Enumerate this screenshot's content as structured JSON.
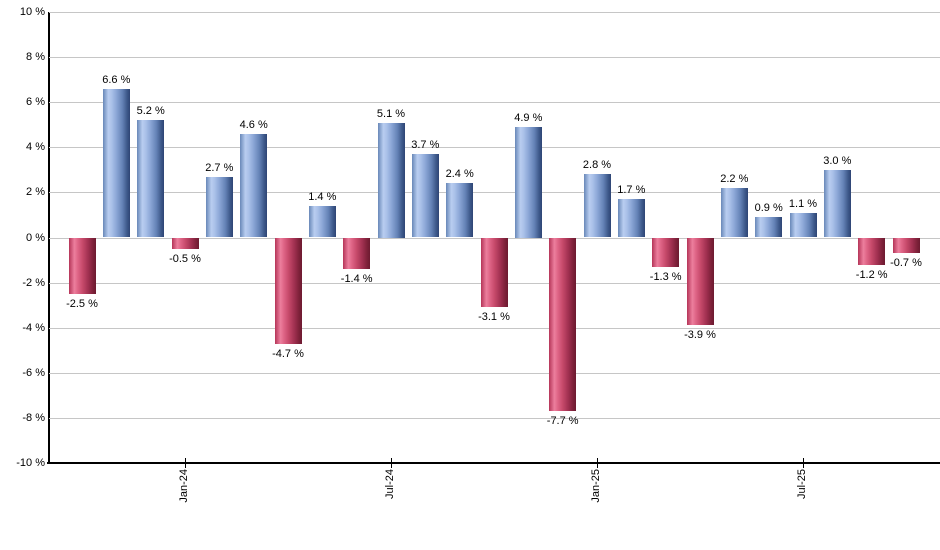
{
  "chart_data": {
    "type": "bar",
    "title": "",
    "xlabel": "",
    "ylabel": "",
    "values": [
      -2.5,
      6.6,
      5.2,
      -0.5,
      2.7,
      4.6,
      -4.7,
      1.4,
      -1.4,
      5.1,
      3.7,
      2.4,
      -3.1,
      4.9,
      -7.7,
      2.8,
      1.7,
      -1.3,
      -3.9,
      2.2,
      0.9,
      1.1,
      3.0,
      -1.2,
      -0.7
    ],
    "bar_value_labels": [
      "-2.5 %",
      "6.6 %",
      "5.2 %",
      "-0.5 %",
      "2.7 %",
      "4.6 %",
      "-4.7 %",
      "1.4 %",
      "-1.4 %",
      "5.1 %",
      "3.7 %",
      "2.4 %",
      "-3.1 %",
      "4.9 %",
      "-7.7 %",
      "2.8 %",
      "1.7 %",
      "-1.3 %",
      "-3.9 %",
      "2.2 %",
      "0.9 %",
      "1.1 %",
      "3.0 %",
      "-1.2 %",
      "-0.7 %"
    ],
    "x_tick_labels": [
      "Jan-24",
      "Jul-24",
      "Jan-25",
      "Jul-25"
    ],
    "x_tick_bar_indices": [
      3,
      9,
      15,
      21
    ],
    "y_tick_labels": [
      "10 %",
      "8 %",
      "6 %",
      "4 %",
      "2 %",
      "0 %",
      "-2 %",
      "-4 %",
      "-6 %",
      "-8 %",
      "-10 %"
    ],
    "y_tick_values": [
      10,
      8,
      6,
      4,
      2,
      0,
      -2,
      -4,
      -6,
      -8,
      -10
    ],
    "ylim": [
      -10,
      10
    ],
    "grid": true,
    "legend": "none",
    "colors": {
      "positive_gradient": [
        "#6888b8",
        "#b9cdf0",
        "#a9c0e8",
        "#8ba6d6",
        "#6482b6",
        "#3c5788",
        "#2e4575"
      ],
      "negative_gradient": [
        "#b53458",
        "#ec7f9d",
        "#de6486",
        "#c74a6b",
        "#a03050",
        "#7c2038",
        "#6d1a31"
      ],
      "gradient_stop_positions": [
        0,
        20,
        33,
        50,
        72,
        90,
        100
      ],
      "gridline": "#c6c6c6",
      "axis": "#000000",
      "text": "#000000",
      "background": "#ffffff"
    }
  }
}
